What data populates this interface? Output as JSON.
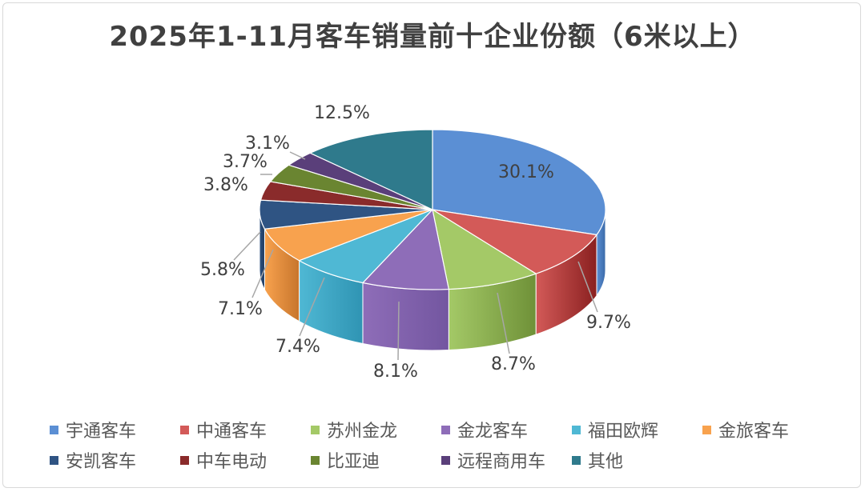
{
  "chart_data": {
    "type": "pie",
    "title": "2025年1-11月客车销量前十企业份额（6米以上）",
    "unit": "%",
    "slices": [
      {
        "name": "宇通客车",
        "value": 30.1,
        "label": "30.1%",
        "color": "#5b8fd4",
        "side": "#3b6aa8"
      },
      {
        "name": "中通客车",
        "value": 9.7,
        "label": "9.7%",
        "color": "#d35a58",
        "side": "#8a2020"
      },
      {
        "name": "苏州金龙",
        "value": 8.7,
        "label": "8.7%",
        "color": "#a4c967",
        "side": "#6f9138"
      },
      {
        "name": "金龙客车",
        "value": 8.1,
        "label": "8.1%",
        "color": "#8e6db8",
        "side": "#7356a0"
      },
      {
        "name": "福田欧辉",
        "value": 7.4,
        "label": "7.4%",
        "color": "#4fb8d4",
        "side": "#2f94b3"
      },
      {
        "name": "金旅客车",
        "value": 7.1,
        "label": "7.1%",
        "color": "#f8a24e",
        "side": "#c7752c"
      },
      {
        "name": "安凯客车",
        "value": 5.8,
        "label": "5.8%",
        "color": "#2f5483",
        "side": "#1f3a5e"
      },
      {
        "name": "中车电动",
        "value": 3.8,
        "label": "3.8%",
        "color": "#8a2b2b",
        "side": "#5e1c1c"
      },
      {
        "name": "比亚迪",
        "value": 3.7,
        "label": "3.7%",
        "color": "#6a8531",
        "side": "#4b6020"
      },
      {
        "name": "远程商用车",
        "value": 3.1,
        "label": "3.1%",
        "color": "#5a3f7a",
        "side": "#3e2a56"
      },
      {
        "name": "其他",
        "value": 12.5,
        "label": "12.5%",
        "color": "#2f7a8c",
        "side": "#1f5763"
      }
    ],
    "legend_position": "bottom"
  }
}
